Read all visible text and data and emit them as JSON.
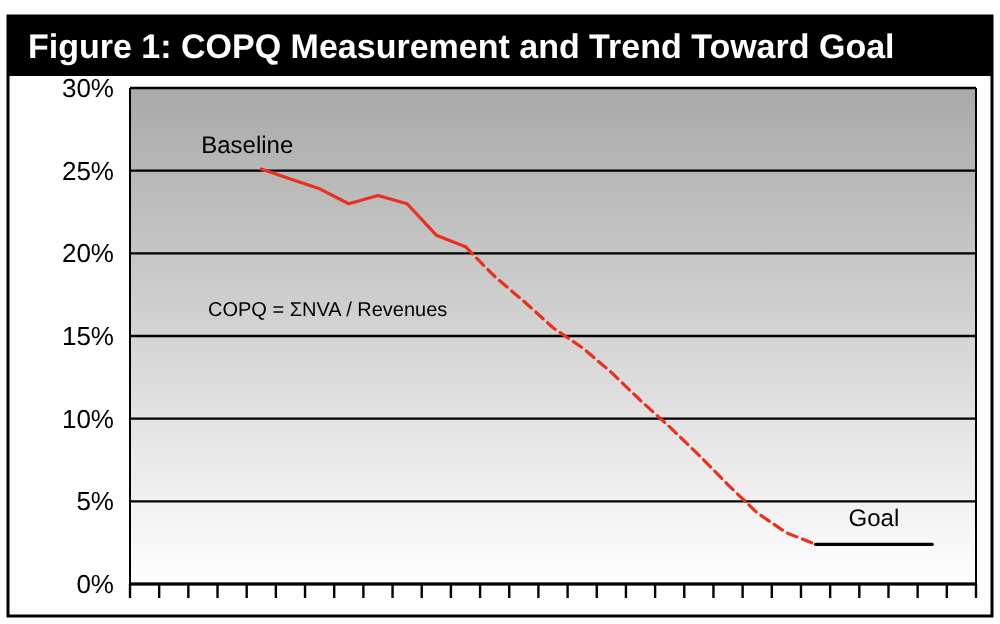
{
  "chart_data": {
    "type": "line",
    "title": "Figure 1: COPQ Measurement and Trend Toward Goal",
    "categories": [
      null,
      null,
      null,
      null,
      null,
      null,
      null,
      null,
      null,
      null,
      null,
      null,
      null,
      null,
      null,
      null,
      null,
      null,
      null,
      null,
      null,
      null,
      null,
      null,
      null,
      null,
      null,
      null,
      null
    ],
    "series": [
      {
        "name": "Baseline",
        "color": "#e8321e",
        "line_style": "solid",
        "values": [
          null,
          null,
          null,
          null,
          25.1,
          24.5,
          23.9,
          23.0,
          23.5,
          23.0,
          21.1,
          20.4,
          null,
          null,
          null,
          null,
          null,
          null,
          null,
          null,
          null,
          null,
          null,
          null,
          null,
          null,
          null,
          null,
          null
        ]
      },
      {
        "color": "#e8321e",
        "line_style": "dashed",
        "values": [
          null,
          null,
          null,
          null,
          null,
          null,
          null,
          null,
          null,
          null,
          null,
          20.4,
          18.6,
          17.1,
          15.5,
          14.3,
          12.8,
          11.1,
          9.5,
          7.8,
          6.0,
          4.3,
          3.1,
          2.4,
          null,
          null,
          null,
          null,
          null
        ]
      },
      {
        "name": "Goal",
        "color": "#000000",
        "line_style": "solid",
        "values": [
          null,
          null,
          null,
          null,
          null,
          null,
          null,
          null,
          null,
          null,
          null,
          null,
          null,
          null,
          null,
          null,
          null,
          null,
          null,
          null,
          null,
          null,
          null,
          2.4,
          2.4,
          2.4,
          2.4,
          2.4,
          null
        ]
      }
    ],
    "ylim": [
      0,
      30
    ],
    "yticks": [
      {
        "value": 0,
        "label": "0%"
      },
      {
        "value": 5,
        "label": "5%"
      },
      {
        "value": 10,
        "label": "10%"
      },
      {
        "value": 15,
        "label": "15%"
      },
      {
        "value": 20,
        "label": "20%"
      },
      {
        "value": 25,
        "label": "25%"
      },
      {
        "value": 30,
        "label": "30%"
      }
    ],
    "grid": "y",
    "marker": "none",
    "legend": false,
    "annotations": [
      "COPQ = ΣNVA / Revenues"
    ]
  }
}
